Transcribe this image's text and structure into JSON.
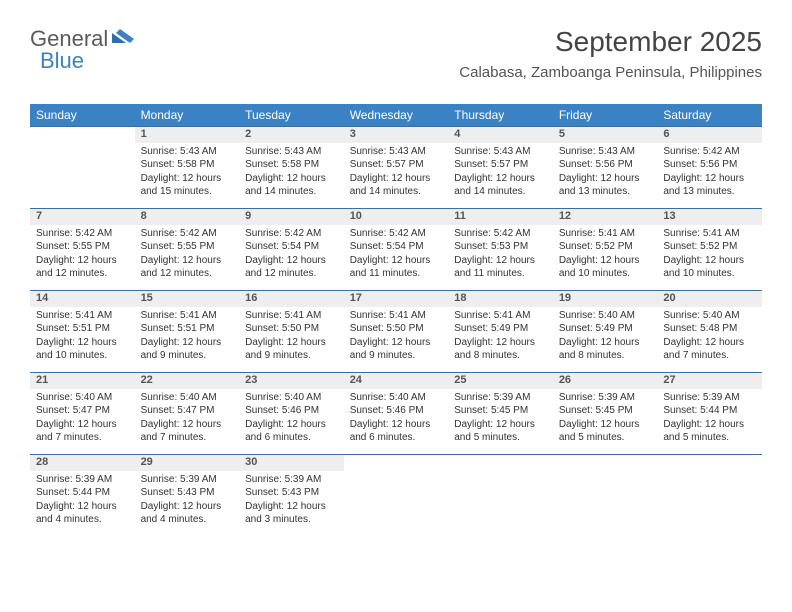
{
  "logo": {
    "text1": "General",
    "text2": "Blue"
  },
  "header": {
    "title": "September 2025",
    "subtitle": "Calabasa, Zamboanga Peninsula, Philippines"
  },
  "colors": {
    "header_bg": "#3b82c4",
    "header_fg": "#ffffff",
    "daynum_bg": "#eeeeee",
    "rule": "#3b6fa0",
    "body_text": "#333333"
  },
  "dayNames": [
    "Sunday",
    "Monday",
    "Tuesday",
    "Wednesday",
    "Thursday",
    "Friday",
    "Saturday"
  ],
  "startOffset": 1,
  "daysInMonth": 30,
  "days": {
    "1": {
      "sunrise": "5:43 AM",
      "sunset": "5:58 PM",
      "daylight": "12 hours and 15 minutes."
    },
    "2": {
      "sunrise": "5:43 AM",
      "sunset": "5:58 PM",
      "daylight": "12 hours and 14 minutes."
    },
    "3": {
      "sunrise": "5:43 AM",
      "sunset": "5:57 PM",
      "daylight": "12 hours and 14 minutes."
    },
    "4": {
      "sunrise": "5:43 AM",
      "sunset": "5:57 PM",
      "daylight": "12 hours and 14 minutes."
    },
    "5": {
      "sunrise": "5:43 AM",
      "sunset": "5:56 PM",
      "daylight": "12 hours and 13 minutes."
    },
    "6": {
      "sunrise": "5:42 AM",
      "sunset": "5:56 PM",
      "daylight": "12 hours and 13 minutes."
    },
    "7": {
      "sunrise": "5:42 AM",
      "sunset": "5:55 PM",
      "daylight": "12 hours and 12 minutes."
    },
    "8": {
      "sunrise": "5:42 AM",
      "sunset": "5:55 PM",
      "daylight": "12 hours and 12 minutes."
    },
    "9": {
      "sunrise": "5:42 AM",
      "sunset": "5:54 PM",
      "daylight": "12 hours and 12 minutes."
    },
    "10": {
      "sunrise": "5:42 AM",
      "sunset": "5:54 PM",
      "daylight": "12 hours and 11 minutes."
    },
    "11": {
      "sunrise": "5:42 AM",
      "sunset": "5:53 PM",
      "daylight": "12 hours and 11 minutes."
    },
    "12": {
      "sunrise": "5:41 AM",
      "sunset": "5:52 PM",
      "daylight": "12 hours and 10 minutes."
    },
    "13": {
      "sunrise": "5:41 AM",
      "sunset": "5:52 PM",
      "daylight": "12 hours and 10 minutes."
    },
    "14": {
      "sunrise": "5:41 AM",
      "sunset": "5:51 PM",
      "daylight": "12 hours and 10 minutes."
    },
    "15": {
      "sunrise": "5:41 AM",
      "sunset": "5:51 PM",
      "daylight": "12 hours and 9 minutes."
    },
    "16": {
      "sunrise": "5:41 AM",
      "sunset": "5:50 PM",
      "daylight": "12 hours and 9 minutes."
    },
    "17": {
      "sunrise": "5:41 AM",
      "sunset": "5:50 PM",
      "daylight": "12 hours and 9 minutes."
    },
    "18": {
      "sunrise": "5:41 AM",
      "sunset": "5:49 PM",
      "daylight": "12 hours and 8 minutes."
    },
    "19": {
      "sunrise": "5:40 AM",
      "sunset": "5:49 PM",
      "daylight": "12 hours and 8 minutes."
    },
    "20": {
      "sunrise": "5:40 AM",
      "sunset": "5:48 PM",
      "daylight": "12 hours and 7 minutes."
    },
    "21": {
      "sunrise": "5:40 AM",
      "sunset": "5:47 PM",
      "daylight": "12 hours and 7 minutes."
    },
    "22": {
      "sunrise": "5:40 AM",
      "sunset": "5:47 PM",
      "daylight": "12 hours and 7 minutes."
    },
    "23": {
      "sunrise": "5:40 AM",
      "sunset": "5:46 PM",
      "daylight": "12 hours and 6 minutes."
    },
    "24": {
      "sunrise": "5:40 AM",
      "sunset": "5:46 PM",
      "daylight": "12 hours and 6 minutes."
    },
    "25": {
      "sunrise": "5:39 AM",
      "sunset": "5:45 PM",
      "daylight": "12 hours and 5 minutes."
    },
    "26": {
      "sunrise": "5:39 AM",
      "sunset": "5:45 PM",
      "daylight": "12 hours and 5 minutes."
    },
    "27": {
      "sunrise": "5:39 AM",
      "sunset": "5:44 PM",
      "daylight": "12 hours and 5 minutes."
    },
    "28": {
      "sunrise": "5:39 AM",
      "sunset": "5:44 PM",
      "daylight": "12 hours and 4 minutes."
    },
    "29": {
      "sunrise": "5:39 AM",
      "sunset": "5:43 PM",
      "daylight": "12 hours and 4 minutes."
    },
    "30": {
      "sunrise": "5:39 AM",
      "sunset": "5:43 PM",
      "daylight": "12 hours and 3 minutes."
    }
  }
}
